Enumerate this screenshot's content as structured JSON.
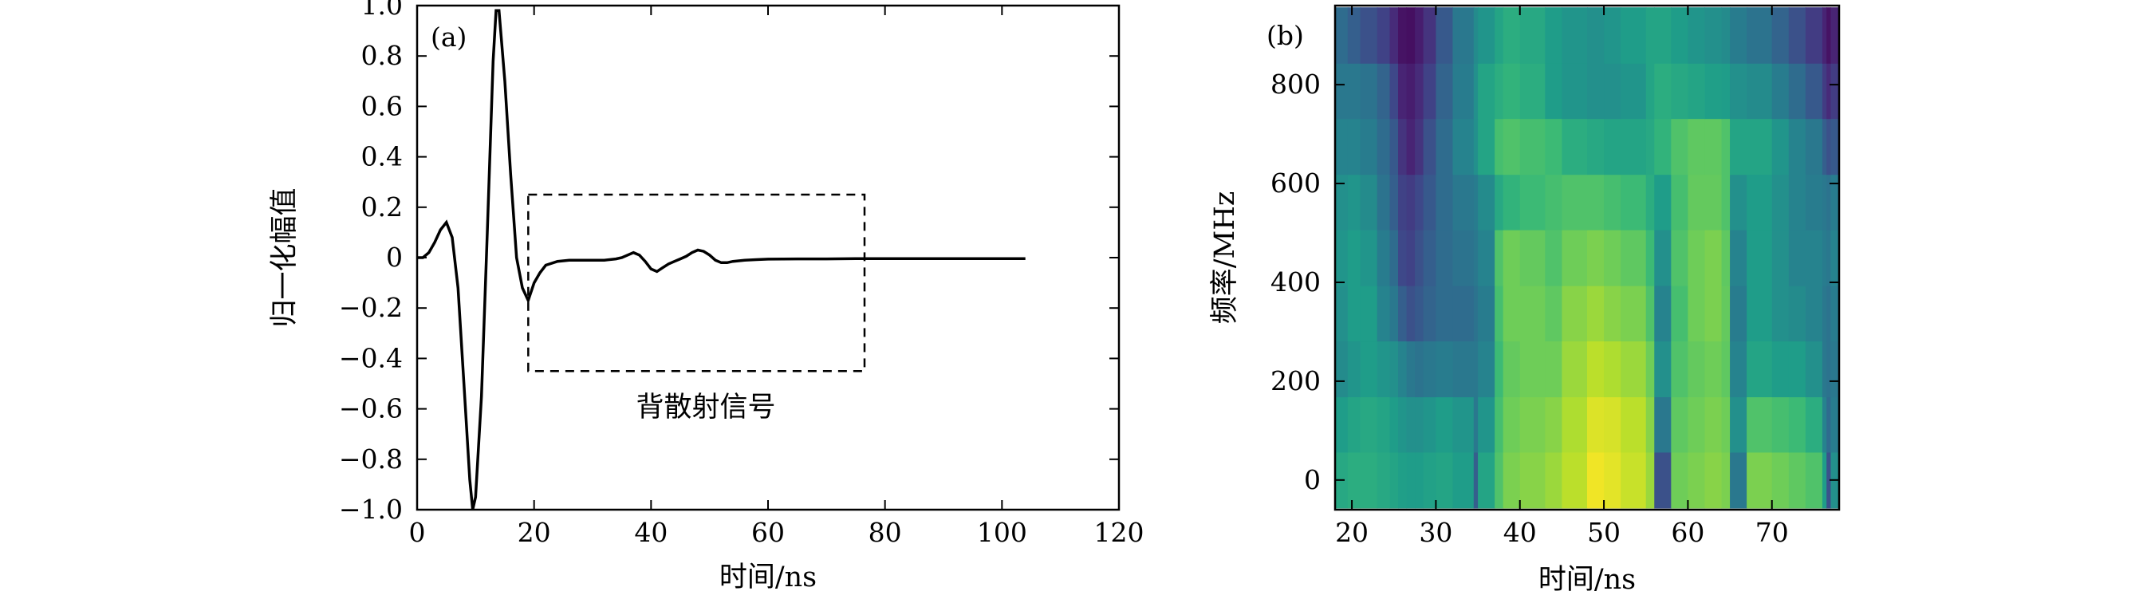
{
  "chart_data": [
    {
      "panel": "(a)",
      "type": "line",
      "xlabel": "时间/ns",
      "ylabel": "归一化幅值",
      "xlim": [
        0,
        120
      ],
      "ylim": [
        -1.0,
        1.0
      ],
      "xticks": [
        0,
        20,
        40,
        60,
        80,
        100,
        120
      ],
      "yticks": [
        1.0,
        0.8,
        0.6,
        0.4,
        0.2,
        0,
        -0.2,
        -0.4,
        -0.6,
        -0.8,
        -1.0
      ],
      "ytick_labels": [
        "1.0",
        "0.8",
        "0.6",
        "0.4",
        "0.2",
        "0",
        "−0.2",
        "−0.4",
        "−0.6",
        "−0.8",
        "−1.0"
      ],
      "series": [
        {
          "color": "#000000",
          "x": [
            0,
            1,
            2,
            3,
            4,
            5,
            6,
            7,
            8,
            9,
            9.5,
            10,
            11,
            12,
            13,
            13.5,
            14,
            15,
            16,
            17,
            18,
            19,
            20,
            21,
            22,
            24,
            26,
            28,
            30,
            32,
            34,
            35,
            36,
            37,
            38,
            39,
            40,
            41,
            42,
            43,
            44,
            45,
            46,
            47,
            48,
            49,
            50,
            51,
            52,
            53,
            54,
            56,
            58,
            60,
            65,
            70,
            75,
            80,
            85,
            90,
            95,
            100,
            104
          ],
          "y": [
            0,
            0,
            0.02,
            0.06,
            0.11,
            0.14,
            0.08,
            -0.12,
            -0.5,
            -0.88,
            -1.0,
            -0.95,
            -0.55,
            0.1,
            0.78,
            0.98,
            0.98,
            0.7,
            0.33,
            0.0,
            -0.12,
            -0.17,
            -0.1,
            -0.06,
            -0.03,
            -0.015,
            -0.01,
            -0.01,
            -0.01,
            -0.01,
            -0.005,
            0.0,
            0.01,
            0.02,
            0.01,
            -0.015,
            -0.045,
            -0.055,
            -0.04,
            -0.025,
            -0.015,
            -0.005,
            0.005,
            0.02,
            0.03,
            0.025,
            0.01,
            -0.01,
            -0.02,
            -0.02,
            -0.015,
            -0.01,
            -0.008,
            -0.006,
            -0.005,
            -0.005,
            -0.004,
            -0.004,
            -0.004,
            -0.004,
            -0.004,
            -0.004,
            -0.004
          ]
        }
      ],
      "annotations": [
        {
          "type": "dashed-box",
          "x0": 19,
          "x1": 76.5,
          "y0": -0.45,
          "y1": 0.25,
          "label": "背散射信号"
        }
      ]
    },
    {
      "panel": "(b)",
      "type": "heatmap",
      "xlabel": "时间/ns",
      "ylabel": "频率/MHz",
      "xlim": [
        18,
        78
      ],
      "ylim": [
        -60,
        960
      ],
      "xticks": [
        20,
        30,
        40,
        50,
        60,
        70
      ],
      "yticks": [
        0,
        200,
        400,
        600,
        800
      ],
      "colormap": "viridis",
      "time_edges": [
        18,
        19.5,
        21,
        23,
        24.5,
        25.5,
        26.5,
        27.5,
        28.5,
        30,
        32,
        34.5,
        35,
        37,
        38,
        40,
        43,
        45,
        48,
        50,
        52,
        55,
        56,
        58,
        60,
        62,
        64,
        65,
        67,
        70,
        72,
        74,
        76,
        76.5,
        77,
        78
      ],
      "freq_bins": [
        0,
        113,
        225,
        338,
        450,
        563,
        675,
        788,
        900
      ],
      "freq_bin_width": 113,
      "values": [
        [
          0.6,
          0.62,
          0.62,
          0.6,
          0.58,
          0.56,
          0.55,
          0.55,
          0.57,
          0.58,
          0.55,
          0.3,
          0.58,
          0.72,
          0.8,
          0.82,
          0.85,
          0.9,
          0.98,
          0.96,
          0.92,
          0.85,
          0.25,
          0.78,
          0.8,
          0.82,
          0.8,
          0.4,
          0.8,
          0.78,
          0.75,
          0.72,
          0.55,
          0.25,
          0.5
        ],
        [
          0.55,
          0.58,
          0.6,
          0.58,
          0.55,
          0.52,
          0.5,
          0.5,
          0.52,
          0.55,
          0.52,
          0.4,
          0.52,
          0.7,
          0.78,
          0.8,
          0.82,
          0.88,
          0.95,
          0.94,
          0.9,
          0.82,
          0.4,
          0.75,
          0.78,
          0.8,
          0.78,
          0.5,
          0.72,
          0.7,
          0.68,
          0.62,
          0.45,
          0.35,
          0.42
        ],
        [
          0.48,
          0.52,
          0.55,
          0.52,
          0.5,
          0.45,
          0.4,
          0.38,
          0.4,
          0.42,
          0.4,
          0.4,
          0.45,
          0.68,
          0.76,
          0.78,
          0.78,
          0.85,
          0.9,
          0.88,
          0.85,
          0.78,
          0.5,
          0.72,
          0.76,
          0.78,
          0.75,
          0.45,
          0.58,
          0.55,
          0.55,
          0.5,
          0.4,
          0.38,
          0.4
        ],
        [
          0.5,
          0.55,
          0.55,
          0.45,
          0.4,
          0.3,
          0.25,
          0.28,
          0.32,
          0.35,
          0.35,
          0.38,
          0.42,
          0.7,
          0.78,
          0.78,
          0.75,
          0.82,
          0.85,
          0.82,
          0.8,
          0.72,
          0.45,
          0.7,
          0.78,
          0.8,
          0.76,
          0.42,
          0.55,
          0.5,
          0.48,
          0.45,
          0.4,
          0.38,
          0.42
        ],
        [
          0.52,
          0.55,
          0.52,
          0.42,
          0.35,
          0.22,
          0.2,
          0.25,
          0.3,
          0.35,
          0.38,
          0.4,
          0.45,
          0.72,
          0.78,
          0.76,
          0.72,
          0.78,
          0.8,
          0.78,
          0.75,
          0.68,
          0.5,
          0.72,
          0.78,
          0.8,
          0.75,
          0.45,
          0.55,
          0.5,
          0.45,
          0.45,
          0.42,
          0.4,
          0.45
        ],
        [
          0.5,
          0.52,
          0.48,
          0.38,
          0.3,
          0.2,
          0.18,
          0.22,
          0.28,
          0.35,
          0.4,
          0.42,
          0.48,
          0.6,
          0.65,
          0.68,
          0.7,
          0.72,
          0.72,
          0.7,
          0.68,
          0.62,
          0.55,
          0.7,
          0.76,
          0.76,
          0.72,
          0.5,
          0.55,
          0.5,
          0.45,
          0.42,
          0.4,
          0.38,
          0.42
        ],
        [
          0.45,
          0.45,
          0.42,
          0.35,
          0.28,
          0.15,
          0.1,
          0.15,
          0.25,
          0.35,
          0.45,
          0.5,
          0.58,
          0.7,
          0.72,
          0.7,
          0.68,
          0.62,
          0.6,
          0.58,
          0.58,
          0.6,
          0.65,
          0.72,
          0.75,
          0.75,
          0.72,
          0.58,
          0.58,
          0.52,
          0.45,
          0.4,
          0.3,
          0.25,
          0.28
        ],
        [
          0.4,
          0.4,
          0.38,
          0.32,
          0.22,
          0.1,
          0.08,
          0.12,
          0.2,
          0.32,
          0.42,
          0.5,
          0.58,
          0.62,
          0.65,
          0.62,
          0.55,
          0.52,
          0.5,
          0.5,
          0.52,
          0.58,
          0.62,
          0.6,
          0.58,
          0.56,
          0.55,
          0.5,
          0.48,
          0.42,
          0.35,
          0.28,
          0.18,
          0.12,
          0.18
        ],
        [
          0.35,
          0.3,
          0.25,
          0.2,
          0.12,
          0.05,
          0.04,
          0.08,
          0.15,
          0.28,
          0.4,
          0.48,
          0.52,
          0.58,
          0.62,
          0.6,
          0.55,
          0.52,
          0.5,
          0.52,
          0.55,
          0.58,
          0.58,
          0.55,
          0.52,
          0.5,
          0.48,
          0.42,
          0.38,
          0.32,
          0.25,
          0.18,
          0.1,
          0.05,
          0.1
        ]
      ]
    }
  ]
}
